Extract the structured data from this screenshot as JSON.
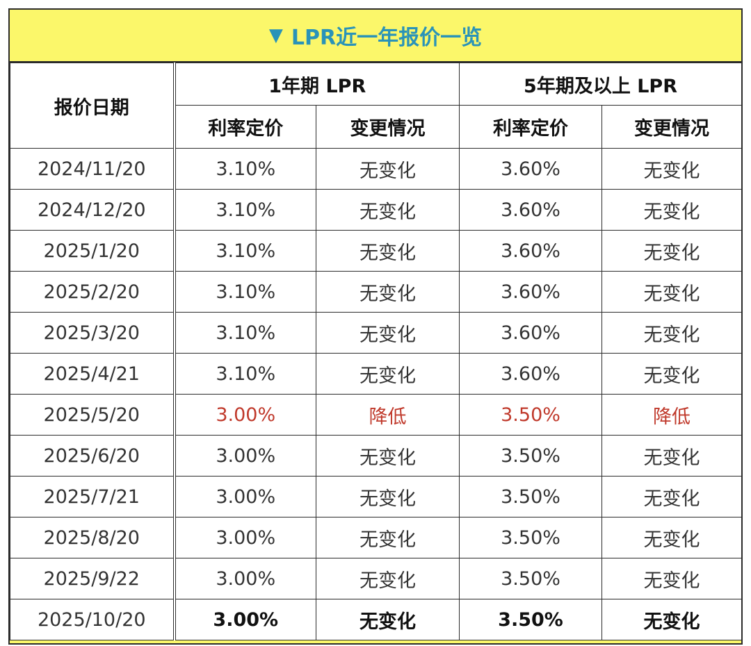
{
  "title": {
    "icon": "down-triangle-icon",
    "text": "LPR近一年报价一览"
  },
  "headers": {
    "date": "报价日期",
    "group1": "1年期 LPR",
    "group2": "5年期及以上 LPR",
    "rate": "利率定价",
    "change": "变更情况"
  },
  "rows": [
    {
      "date": "2024/11/20",
      "r1": "3.10%",
      "c1": "无变化",
      "r5": "3.60%",
      "c5": "无变化"
    },
    {
      "date": "2024/12/20",
      "r1": "3.10%",
      "c1": "无变化",
      "r5": "3.60%",
      "c5": "无变化"
    },
    {
      "date": "2025/1/20",
      "r1": "3.10%",
      "c1": "无变化",
      "r5": "3.60%",
      "c5": "无变化"
    },
    {
      "date": "2025/2/20",
      "r1": "3.10%",
      "c1": "无变化",
      "r5": "3.60%",
      "c5": "无变化"
    },
    {
      "date": "2025/3/20",
      "r1": "3.10%",
      "c1": "无变化",
      "r5": "3.60%",
      "c5": "无变化"
    },
    {
      "date": "2025/4/21",
      "r1": "3.10%",
      "c1": "无变化",
      "r5": "3.60%",
      "c5": "无变化"
    },
    {
      "date": "2025/5/20",
      "r1": "3.00%",
      "c1": "降低",
      "r5": "3.50%",
      "c5": "降低"
    },
    {
      "date": "2025/6/20",
      "r1": "3.00%",
      "c1": "无变化",
      "r5": "3.50%",
      "c5": "无变化"
    },
    {
      "date": "2025/7/21",
      "r1": "3.00%",
      "c1": "无变化",
      "r5": "3.50%",
      "c5": "无变化"
    },
    {
      "date": "2025/8/20",
      "r1": "3.00%",
      "c1": "无变化",
      "r5": "3.50%",
      "c5": "无变化"
    },
    {
      "date": "2025/9/22",
      "r1": "3.00%",
      "c1": "无变化",
      "r5": "3.50%",
      "c5": "无变化"
    },
    {
      "date": "2025/10/20",
      "r1": "3.00%",
      "c1": "无变化",
      "r5": "3.50%",
      "c5": "无变化"
    }
  ],
  "colors": {
    "title_bg": "#fbf76a",
    "title_text": "#2a93b8",
    "highlight_red": "#c0392b"
  }
}
